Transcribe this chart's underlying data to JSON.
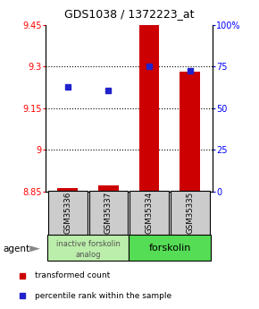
{
  "title": "GDS1038 / 1372223_at",
  "samples": [
    "GSM35336",
    "GSM35337",
    "GSM35334",
    "GSM35335"
  ],
  "bar_values": [
    8.863,
    8.872,
    9.45,
    9.28
  ],
  "bar_base": 8.85,
  "blue_values": [
    9.225,
    9.215,
    9.3,
    9.285
  ],
  "ylim_left": [
    8.85,
    9.45
  ],
  "yticks_left": [
    8.85,
    9.0,
    9.15,
    9.3,
    9.45
  ],
  "yticks_right": [
    0,
    25,
    50,
    75,
    100
  ],
  "ytick_labels_left": [
    "8.85",
    "9",
    "9.15",
    "9.3",
    "9.45"
  ],
  "ytick_labels_right": [
    "0",
    "25",
    "50",
    "75",
    "100%"
  ],
  "bar_color": "#cc0000",
  "blue_color": "#2222cc",
  "group1_label_line1": "inactive forskolin",
  "group1_label_line2": "analog",
  "group2_label": "forskolin",
  "group1_color": "#bbeeaa",
  "group2_color": "#55dd55",
  "agent_label": "agent",
  "legend_red": "transformed count",
  "legend_blue": "percentile rank within the sample",
  "sample_box_color": "#cccccc"
}
